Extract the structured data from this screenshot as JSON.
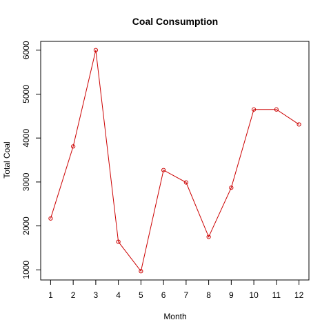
{
  "chart_data": {
    "type": "line",
    "title": "Coal Consumption",
    "xlabel": "Month",
    "ylabel": "Total Coal",
    "x": [
      1,
      2,
      3,
      4,
      5,
      6,
      7,
      8,
      9,
      10,
      11,
      12
    ],
    "x_ticks": [
      "1",
      "2",
      "3",
      "4",
      "5",
      "6",
      "7",
      "8",
      "9",
      "10",
      "11",
      "12"
    ],
    "y": [
      2170,
      3810,
      6000,
      1640,
      970,
      3270,
      2990,
      1750,
      2870,
      4650,
      4650,
      4310
    ],
    "y_ticks": [
      "1000",
      "2000",
      "3000",
      "4000",
      "5000",
      "6000"
    ],
    "xlim": [
      0.56,
      12.44
    ],
    "ylim": [
      770,
      6200
    ],
    "grid": false,
    "legend": "none",
    "series_color": "#cc0000",
    "marker": "open-circle"
  }
}
